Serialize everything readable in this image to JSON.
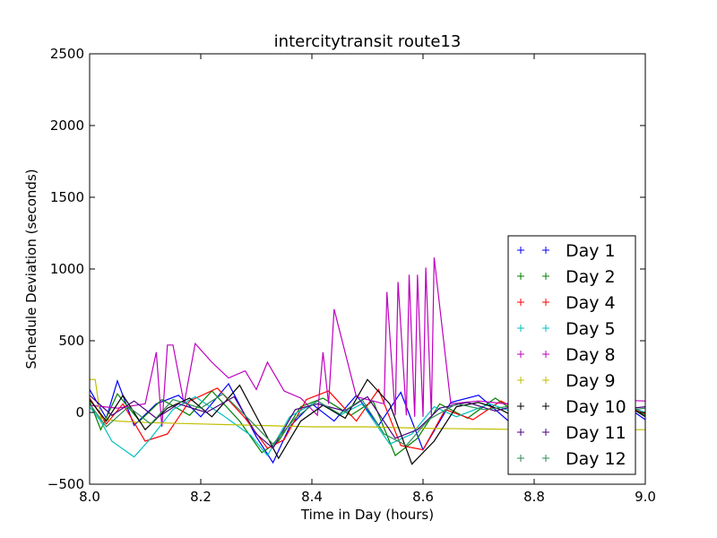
{
  "chart_data": {
    "type": "line",
    "title": "intercitytransit route13",
    "xlabel": "Time in Day (hours)",
    "ylabel": "Schedule Deviation (seconds)",
    "xlim": [
      8.0,
      9.0
    ],
    "ylim": [
      -500,
      2500
    ],
    "xticks": [
      "8.0",
      "8.2",
      "8.4",
      "8.6",
      "8.8",
      "9.0"
    ],
    "yticks": [
      "−500",
      "0",
      "500",
      "1000",
      "1500",
      "2000",
      "2500"
    ],
    "grid": false,
    "legend_position": "lower-right",
    "series": [
      {
        "name": "Day 1",
        "color": "#0000ff",
        "x": [
          8.0,
          8.03,
          8.05,
          8.08,
          8.12,
          8.16,
          8.2,
          8.25,
          8.3,
          8.33,
          8.36,
          8.4,
          8.44,
          8.48,
          8.52,
          8.56,
          8.6,
          8.65,
          8.7,
          8.76,
          8.82,
          8.88,
          8.94,
          9.0
        ],
        "y": [
          160,
          -40,
          220,
          -90,
          60,
          120,
          -30,
          200,
          -170,
          -350,
          -100,
          60,
          -60,
          120,
          -90,
          140,
          -260,
          70,
          120,
          -80,
          90,
          -40,
          110,
          -50
        ]
      },
      {
        "name": "Day 2",
        "color": "#008000",
        "x": [
          8.0,
          8.02,
          8.05,
          8.09,
          8.13,
          8.18,
          8.22,
          8.27,
          8.31,
          8.34,
          8.38,
          8.42,
          8.47,
          8.51,
          8.55,
          8.59,
          8.63,
          8.68,
          8.73,
          8.79,
          8.85,
          8.9,
          8.95,
          9.0
        ],
        "y": [
          80,
          -120,
          130,
          -60,
          90,
          -20,
          150,
          -60,
          -280,
          -200,
          40,
          100,
          -20,
          80,
          -300,
          -180,
          60,
          -40,
          100,
          -60,
          60,
          -30,
          80,
          -20
        ]
      },
      {
        "name": "Day 4",
        "color": "#ff0000",
        "x": [
          8.0,
          8.03,
          8.06,
          8.1,
          8.14,
          8.18,
          8.23,
          8.28,
          8.32,
          8.35,
          8.39,
          8.43,
          8.48,
          8.52,
          8.56,
          8.6,
          8.64,
          8.69,
          8.74,
          8.8,
          8.86,
          8.91,
          8.96,
          9.0
        ],
        "y": [
          100,
          -80,
          60,
          -200,
          -150,
          80,
          170,
          -40,
          -250,
          -190,
          90,
          150,
          -60,
          160,
          -230,
          -260,
          20,
          -50,
          80,
          -40,
          70,
          -30,
          60,
          -10
        ]
      },
      {
        "name": "Day 5",
        "color": "#00bfbf",
        "x": [
          8.0,
          8.02,
          8.04,
          8.08,
          8.11,
          8.15,
          8.19,
          8.24,
          8.29,
          8.32,
          8.36,
          8.41,
          8.45,
          8.49,
          8.54,
          8.58,
          8.62,
          8.66,
          8.72,
          8.78,
          8.84,
          8.89,
          8.95,
          9.0
        ],
        "y": [
          40,
          -60,
          -200,
          -310,
          -180,
          20,
          110,
          -20,
          -160,
          -300,
          -30,
          80,
          -20,
          60,
          -220,
          -150,
          40,
          -30,
          60,
          -20,
          50,
          -40,
          70,
          0
        ]
      },
      {
        "name": "Day 8",
        "color": "#bf00bf",
        "x": [
          8.0,
          8.05,
          8.1,
          8.12,
          8.13,
          8.14,
          8.15,
          8.17,
          8.19,
          8.22,
          8.25,
          8.28,
          8.3,
          8.32,
          8.35,
          8.38,
          8.41,
          8.42,
          8.43,
          8.44,
          8.48,
          8.53,
          8.535,
          8.55,
          8.555,
          8.57,
          8.575,
          8.585,
          8.59,
          8.6,
          8.605,
          8.615,
          8.62,
          8.65,
          8.7,
          8.75,
          8.8,
          8.86,
          8.92,
          9.0
        ],
        "y": [
          50,
          30,
          60,
          420,
          -100,
          470,
          470,
          60,
          480,
          350,
          240,
          290,
          160,
          350,
          150,
          100,
          -20,
          420,
          60,
          720,
          110,
          60,
          840,
          -20,
          910,
          -20,
          960,
          -30,
          960,
          -30,
          1010,
          -20,
          1080,
          60,
          80,
          60,
          100,
          60,
          90,
          80
        ]
      },
      {
        "name": "Day 9",
        "color": "#bfbf00",
        "x": [
          8.0,
          8.01,
          8.02,
          8.05,
          8.1,
          8.2,
          8.3,
          8.4,
          8.5,
          8.6,
          8.7,
          8.8,
          8.9,
          9.0
        ],
        "y": [
          230,
          230,
          -40,
          -60,
          -70,
          -80,
          -90,
          -100,
          -100,
          -110,
          -115,
          -120,
          -120,
          -120
        ]
      },
      {
        "name": "Day 10",
        "color": "#000000",
        "x": [
          8.0,
          8.03,
          8.06,
          8.1,
          8.14,
          8.18,
          8.22,
          8.27,
          8.31,
          8.34,
          8.38,
          8.42,
          8.46,
          8.5,
          8.54,
          8.58,
          8.62,
          8.66,
          8.7,
          8.74,
          8.78,
          8.82,
          8.86,
          8.9,
          8.95,
          9.0
        ],
        "y": [
          90,
          -60,
          120,
          -120,
          30,
          100,
          -30,
          190,
          -100,
          -320,
          -60,
          50,
          -40,
          230,
          60,
          -360,
          -200,
          40,
          70,
          20,
          -60,
          -60,
          110,
          -40,
          90,
          -30
        ]
      },
      {
        "name": "Day 11",
        "color": "#4b0082",
        "x": [
          8.0,
          8.04,
          8.08,
          8.12,
          8.16,
          8.21,
          8.26,
          8.3,
          8.33,
          8.37,
          8.41,
          8.46,
          8.5,
          8.55,
          8.59,
          8.63,
          8.68,
          8.73,
          8.78,
          8.83,
          8.88,
          8.93,
          9.0
        ],
        "y": [
          120,
          -20,
          80,
          -40,
          60,
          0,
          110,
          -150,
          -250,
          20,
          60,
          10,
          110,
          -180,
          -120,
          30,
          70,
          10,
          60,
          -30,
          50,
          10,
          40
        ]
      },
      {
        "name": "Day 12",
        "color": "#2e8b57",
        "x": [
          8.0,
          8.03,
          8.07,
          8.11,
          8.15,
          8.2,
          8.24,
          8.29,
          8.33,
          8.37,
          8.41,
          8.45,
          8.49,
          8.53,
          8.57,
          8.61,
          8.66,
          8.71,
          8.77,
          8.83,
          8.89,
          8.94,
          9.0
        ],
        "y": [
          60,
          -100,
          40,
          -80,
          90,
          30,
          130,
          -60,
          -220,
          -40,
          80,
          -10,
          90,
          -150,
          -230,
          -50,
          60,
          20,
          50,
          -20,
          40,
          0,
          30
        ]
      }
    ]
  }
}
